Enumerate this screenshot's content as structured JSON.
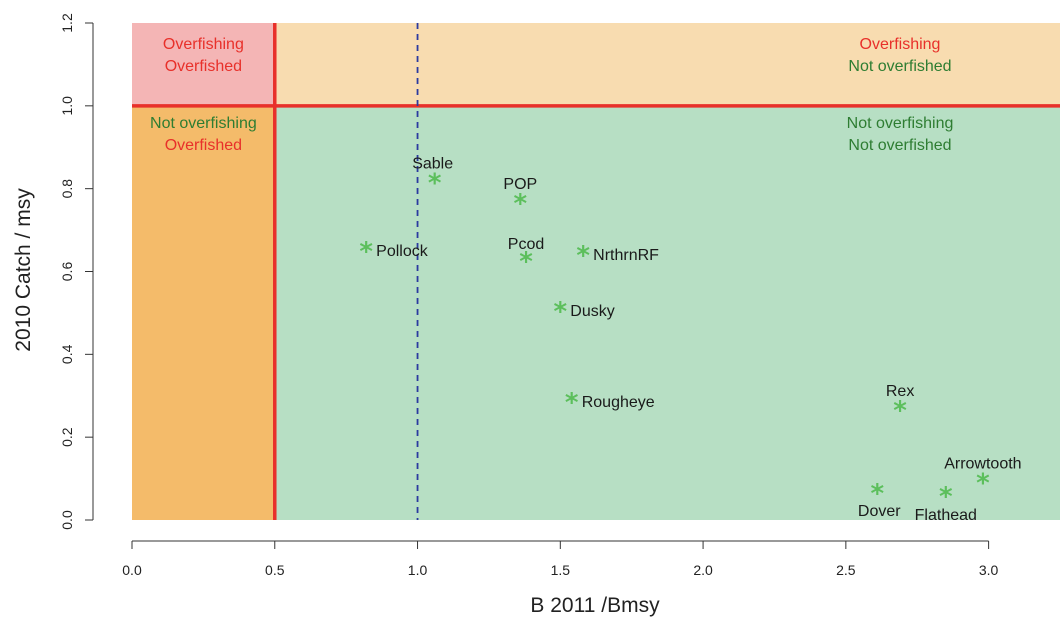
{
  "chart_data": {
    "type": "scatter",
    "title": "",
    "xlabel": "B 2011 /Bmsy",
    "ylabel": "2010 Catch / msy",
    "xlim": [
      0.0,
      3.25
    ],
    "ylim": [
      0.0,
      1.2
    ],
    "x_ticks": [
      "0.0",
      "0.5",
      "1.0",
      "1.5",
      "2.0",
      "2.5",
      "3.0"
    ],
    "y_ticks": [
      "0.0",
      "0.2",
      "0.4",
      "0.6",
      "0.8",
      "1.0",
      "1.2"
    ],
    "grid": false,
    "legend": "none",
    "marker": "*",
    "marker_color": "#5cbf5c",
    "reference_lines": [
      {
        "axis": "x",
        "value": 0.5,
        "style": "solid",
        "color": "#e8302a"
      },
      {
        "axis": "y",
        "value": 1.0,
        "style": "solid",
        "color": "#e8302a"
      },
      {
        "axis": "x",
        "value": 1.0,
        "style": "dashed",
        "color": "#2b3aa0"
      }
    ],
    "zones": [
      {
        "id": "top-left",
        "color": "#f4b5b5",
        "lines": [
          {
            "text": "Overfishing",
            "color": "#e8302a"
          },
          {
            "text": "Overfished",
            "color": "#e8302a"
          }
        ]
      },
      {
        "id": "top-right",
        "color": "#f8dcb0",
        "lines": [
          {
            "text": "Overfishing",
            "color": "#e8302a"
          },
          {
            "text": "Not overfished",
            "color": "#2e7d32"
          }
        ]
      },
      {
        "id": "bottom-left",
        "color": "#f4bb6a",
        "lines": [
          {
            "text": "Not overfishing",
            "color": "#2e7d32"
          },
          {
            "text": "Overfished",
            "color": "#e8302a"
          }
        ]
      },
      {
        "id": "bottom-right",
        "color": "#b7dfc4",
        "lines": [
          {
            "text": "Not overfishing",
            "color": "#2e7d32"
          },
          {
            "text": "Not overfished",
            "color": "#2e7d32"
          }
        ]
      }
    ],
    "points": [
      {
        "label": "Sable",
        "x": 1.06,
        "y": 0.815
      },
      {
        "label": "POP",
        "x": 1.36,
        "y": 0.765
      },
      {
        "label": "Pollock",
        "x": 0.82,
        "y": 0.65
      },
      {
        "label": "Pcod",
        "x": 1.38,
        "y": 0.625
      },
      {
        "label": "NrthrnRF",
        "x": 1.58,
        "y": 0.64
      },
      {
        "label": "Dusky",
        "x": 1.5,
        "y": 0.505
      },
      {
        "label": "Rougheye",
        "x": 1.54,
        "y": 0.285
      },
      {
        "label": "Rex",
        "x": 2.69,
        "y": 0.265
      },
      {
        "label": "Arrowtooth",
        "x": 2.98,
        "y": 0.09
      },
      {
        "label": "Dover",
        "x": 2.61,
        "y": 0.065
      },
      {
        "label": "Flathead",
        "x": 2.85,
        "y": 0.058
      }
    ]
  }
}
